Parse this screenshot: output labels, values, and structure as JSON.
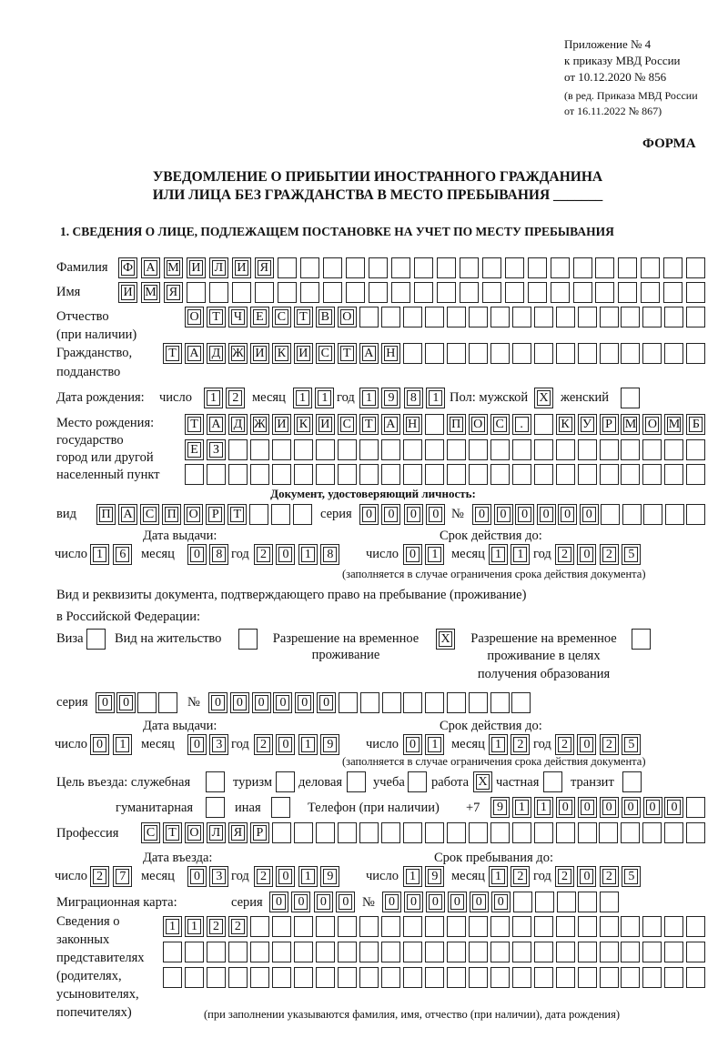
{
  "header": {
    "annex": "Приложение № 4",
    "order": "к приказу МВД России",
    "order_date": "от 10.12.2020 № 856",
    "edition1": "(в ред. Приказа МВД России",
    "edition2": "от 16.11.2022 № 867)",
    "form_label": "ФОРМА",
    "title1": "УВЕДОМЛЕНИЕ О ПРИБЫТИИ ИНОСТРАННОГО ГРАЖДАНИНА",
    "title2": "ИЛИ ЛИЦА БЕЗ ГРАЖДАНСТВА В МЕСТО ПРЕБЫВАНИЯ _______",
    "section1": "1. СВЕДЕНИЯ О ЛИЦЕ, ПОДЛЕЖАЩЕМ ПОСТАНОВКЕ НА УЧЕТ ПО МЕСТУ ПРЕБЫВАНИЯ"
  },
  "labels": {
    "surname": "Фамилия",
    "name": "Имя",
    "patronymic1": "Отчество",
    "patronymic2": "(при наличии)",
    "citizenship1": "Гражданство,",
    "citizenship2": "подданство",
    "birth_date": "Дата рождения:",
    "day": "число",
    "month": "месяц",
    "year": "год",
    "sex": "Пол: мужской",
    "female": "женский",
    "birthplace1": "Место рождения:",
    "birthplace2": "государство",
    "birthplace3": "город или другой",
    "birthplace4": "населенный пункт",
    "id_doc": "Документ, удостоверяющий личность:",
    "kind": "вид",
    "series": "серия",
    "number": "№",
    "issue_date": "Дата выдачи:",
    "valid_until": "Срок действия до:",
    "valid_note": "(заполняется в случае ограничения срока действия документа)",
    "residence_doc1": "Вид и реквизиты документа, подтверждающего право на пребывание (проживание)",
    "residence_doc2": "в Российской Федерации:",
    "visa": "Виза",
    "residence_permit": "Вид на жительство",
    "trp1": "Разрешение на временное",
    "trp2": "проживание",
    "trp_edu1": "Разрешение на временное",
    "trp_edu2": "проживание в целях",
    "trp_edu3": "получения образования",
    "purpose": "Цель въезда: служебная",
    "tourism": "туризм",
    "business": "деловая",
    "study": "учеба",
    "work": "работа",
    "private": "частная",
    "transit": "транзит",
    "humanitarian": "гуманитарная",
    "other": "иная",
    "phone": "Телефон (при наличии)",
    "phone_prefix": "+7",
    "profession": "Профессия",
    "entry_date": "Дата въезда:",
    "stay_until": "Срок пребывания до:",
    "migration_card": "Миграционная карта:",
    "reps1": "Сведения о",
    "reps2": "законных",
    "reps3": "представителях",
    "reps4": "(родителях,",
    "reps5": "усыновителях,",
    "reps6": "попечителях)",
    "reps_note": "(при заполнении указываются фамилия, имя, отчество (при наличии), дата рождения)"
  },
  "person": {
    "surname": "ФАМИЛИЯ",
    "name": "ИМЯ",
    "patronymic": "ОТЧЕСТВО",
    "citizenship": "ТАДЖИКИСТАН",
    "birth_day": "12",
    "birth_month": "11",
    "birth_year": "1981",
    "male": "X",
    "female": "",
    "birthplace_1": "ТАДЖИКИСТАН ПОС. КУРМОМБ",
    "birthplace_2": "ЕЗ",
    "birthplace_3": ""
  },
  "id_document": {
    "kind": "ПАСПОРТ",
    "series": "0000",
    "number": "000000",
    "issue_day": "16",
    "issue_month": "08",
    "issue_year": "2018",
    "valid_day": "01",
    "valid_month": "11",
    "valid_year": "2025"
  },
  "residence_document": {
    "visa": "",
    "residence_permit": "",
    "trp": "X",
    "trp_edu": "",
    "series": "00",
    "number": "000000",
    "issue_day": "01",
    "issue_month": "03",
    "issue_year": "2019",
    "valid_day": "01",
    "valid_month": "12",
    "valid_year": "2025"
  },
  "purpose": {
    "official": "",
    "tourism": "",
    "business": "",
    "study": "",
    "work": "X",
    "private": "",
    "transit": "",
    "humanitarian": "",
    "other": ""
  },
  "phone": "911000000",
  "profession": "СТОЛЯР",
  "entry": {
    "day": "27",
    "month": "03",
    "year": "2019"
  },
  "stay_until": {
    "day": "19",
    "month": "12",
    "year": "2025"
  },
  "migration_card": {
    "series": "0000",
    "number": "000000"
  },
  "legal_representatives": [
    "1122",
    "",
    ""
  ]
}
